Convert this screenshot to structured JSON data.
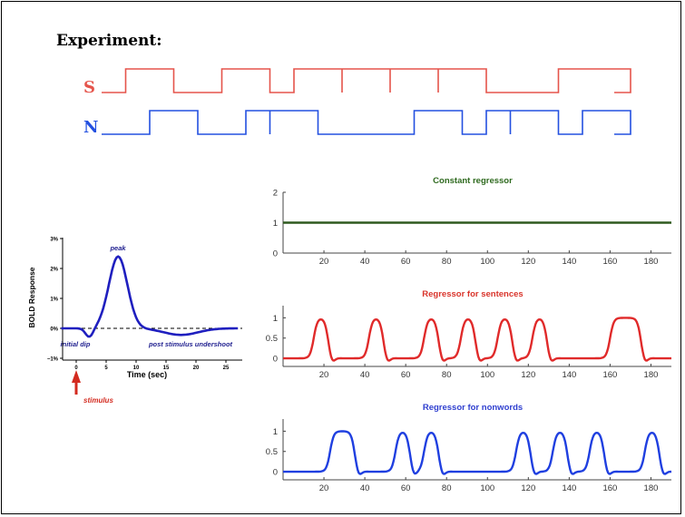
{
  "experiment": {
    "title": "Experiment:",
    "rows": [
      {
        "label": "S",
        "color": "#e5544b",
        "onsets": [
          [
            1,
            3
          ],
          [
            5,
            7
          ],
          [
            8,
            10
          ],
          [
            10,
            12
          ],
          [
            12,
            14
          ],
          [
            14,
            16
          ],
          [
            19,
            22
          ]
        ]
      },
      {
        "label": "N",
        "color": "#2350e0",
        "onsets": [
          [
            2,
            4
          ],
          [
            6,
            7
          ],
          [
            7,
            9
          ],
          [
            13,
            15
          ],
          [
            16,
            17
          ],
          [
            17,
            19
          ],
          [
            20,
            22
          ]
        ]
      }
    ]
  },
  "hrf": {
    "ylabel": "BOLD Response",
    "xlabel": "Time (sec)",
    "yticks": [
      "3%",
      "2%",
      "1%",
      "0%",
      "−1%"
    ],
    "xticks": [
      "0",
      "5",
      "10",
      "15",
      "20",
      "25"
    ],
    "annotations": {
      "peak": "peak",
      "dip": "initial dip",
      "undershoot": "post stimulus undershoot",
      "stimulus": "stimulus"
    },
    "colors": {
      "curve": "#1f1fbf",
      "annot": "#1f1f8f",
      "stimulus": "#d32a1f"
    }
  },
  "chart_data": [
    {
      "type": "line",
      "title": "Constant regressor",
      "title_color": "#2f6a1f",
      "color": "#2f5a1f",
      "xlim": [
        0,
        190
      ],
      "ylim": [
        0,
        2
      ],
      "xticks": [
        "20",
        "40",
        "60",
        "80",
        "100",
        "120",
        "140",
        "160",
        "180"
      ],
      "yticks": [
        "0",
        "1",
        "2"
      ],
      "series": [
        {
          "x": [
            0,
            190
          ],
          "y": [
            1,
            1
          ]
        }
      ]
    },
    {
      "type": "line",
      "title": "Regressor for sentences",
      "title_color": "#d9342b",
      "color": "#e02a2a",
      "xlim": [
        0,
        190
      ],
      "ylim": [
        -0.2,
        1.3
      ],
      "xticks": [
        "20",
        "40",
        "60",
        "80",
        "100",
        "120",
        "140",
        "160",
        "180"
      ],
      "yticks": [
        "0",
        "0.5",
        "1"
      ],
      "series": [
        {
          "blocks": [
            [
              13,
              20
            ],
            [
              40,
              47
            ],
            [
              67,
              74
            ],
            [
              85,
              92
            ],
            [
              103,
              110
            ],
            [
              120,
              127
            ],
            [
              158,
              173
            ]
          ]
        }
      ]
    },
    {
      "type": "line",
      "title": "Regressor for nonwords",
      "title_color": "#2f3fcf",
      "color": "#1f3fe0",
      "xlim": [
        0,
        190
      ],
      "ylim": [
        -0.2,
        1.3
      ],
      "xticks": [
        "20",
        "40",
        "60",
        "80",
        "100",
        "120",
        "140",
        "160",
        "180"
      ],
      "yticks": [
        "0",
        "0.5",
        "1"
      ],
      "series": [
        {
          "blocks": [
            [
              21,
              33
            ],
            [
              53,
              60
            ],
            [
              67,
              74
            ],
            [
              112,
              119
            ],
            [
              130,
              137
            ],
            [
              148,
              155
            ],
            [
              175,
              182
            ]
          ]
        }
      ]
    }
  ]
}
